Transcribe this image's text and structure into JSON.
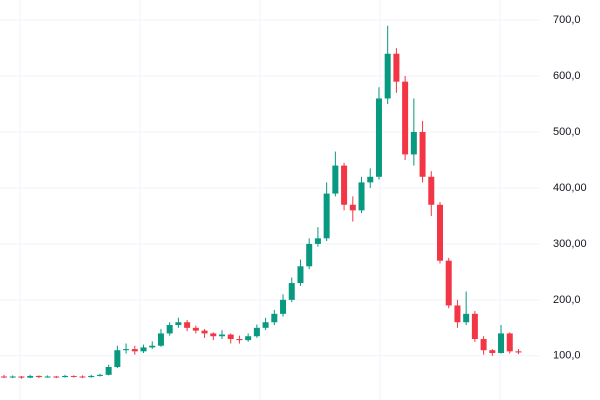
{
  "chart_data": {
    "type": "candlestick",
    "open": [
      63,
      62,
      63,
      61,
      64,
      62,
      63,
      62,
      64,
      63,
      62,
      64,
      66,
      80,
      110,
      112,
      108,
      115,
      118,
      140,
      155,
      160,
      150,
      145,
      140,
      135,
      138,
      130,
      128,
      135,
      150,
      160,
      175,
      200,
      230,
      260,
      300,
      310,
      390,
      440,
      370,
      360,
      410,
      420,
      560,
      640,
      590,
      460,
      500,
      420,
      370,
      270,
      190,
      160,
      175,
      130,
      110,
      105,
      140,
      108
    ],
    "high": [
      66,
      65,
      64,
      66,
      65,
      65,
      64,
      66,
      65,
      65,
      66,
      68,
      84,
      118,
      122,
      118,
      120,
      126,
      148,
      160,
      168,
      164,
      154,
      148,
      142,
      146,
      140,
      136,
      140,
      156,
      168,
      182,
      210,
      240,
      272,
      310,
      330,
      410,
      465,
      445,
      385,
      420,
      435,
      580,
      690,
      650,
      600,
      560,
      520,
      430,
      375,
      275,
      200,
      215,
      180,
      135,
      112,
      155,
      142,
      112
    ],
    "low": [
      60,
      60,
      59,
      60,
      60,
      61,
      60,
      61,
      61,
      60,
      61,
      63,
      65,
      78,
      104,
      102,
      105,
      112,
      116,
      136,
      150,
      144,
      140,
      132,
      128,
      130,
      122,
      122,
      125,
      132,
      146,
      155,
      170,
      196,
      225,
      255,
      295,
      305,
      385,
      360,
      340,
      355,
      400,
      415,
      550,
      570,
      450,
      440,
      410,
      350,
      265,
      185,
      150,
      155,
      125,
      102,
      100,
      104,
      104,
      103
    ],
    "close": [
      62,
      63,
      61,
      64,
      62,
      63,
      62,
      64,
      63,
      62,
      64,
      66,
      80,
      110,
      112,
      108,
      115,
      118,
      140,
      155,
      160,
      150,
      145,
      140,
      135,
      138,
      130,
      128,
      135,
      150,
      160,
      175,
      200,
      230,
      260,
      300,
      310,
      390,
      440,
      370,
      360,
      410,
      420,
      560,
      640,
      590,
      460,
      500,
      420,
      370,
      270,
      190,
      160,
      175,
      130,
      110,
      105,
      140,
      108,
      106
    ],
    "up_color": "#089981",
    "down_color": "#f23645",
    "ylim": [
      21,
      736
    ],
    "yticks": [
      {
        "value": 100,
        "label": "100,0"
      },
      {
        "value": 200,
        "label": "200,0"
      },
      {
        "value": 300,
        "label": "300,00"
      },
      {
        "value": 400,
        "label": "400,00"
      },
      {
        "value": 500,
        "label": "500,0"
      },
      {
        "value": 600,
        "label": "600,0"
      },
      {
        "value": 700,
        "label": "700,0"
      }
    ],
    "grid": true
  }
}
